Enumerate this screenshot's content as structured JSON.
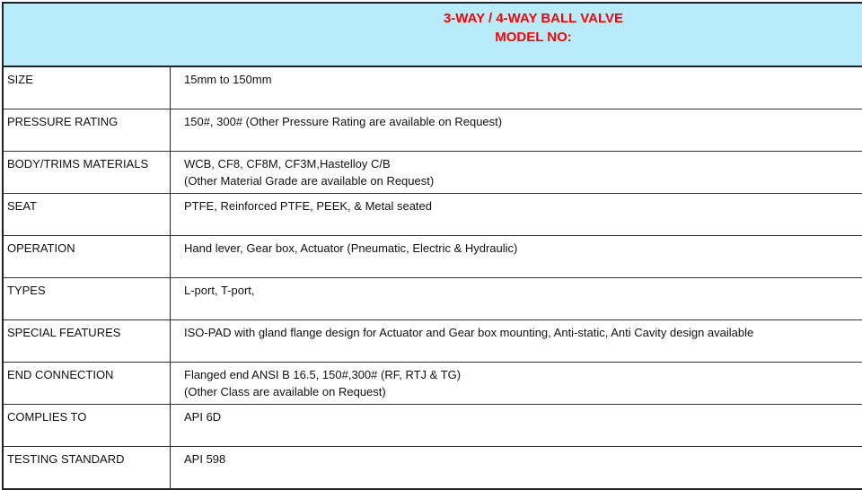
{
  "header": {
    "title": "3-WAY / 4-WAY BALL VALVE",
    "model_label": "MODEL NO:",
    "title_color": "#ff0000",
    "background": "#b8ecfb"
  },
  "rows": [
    {
      "label": "SIZE",
      "value": [
        "15mm to 150mm"
      ]
    },
    {
      "label": "PRESSURE RATING",
      "value": [
        "150#, 300# (Other Pressure Rating are available on Request)"
      ]
    },
    {
      "label": "BODY/TRIMS MATERIALS",
      "value": [
        "WCB, CF8, CF8M, CF3M,Hastelloy C/B",
        "(Other Material Grade are available on Request)"
      ]
    },
    {
      "label": "SEAT",
      "value": [
        "PTFE, Reinforced PTFE, PEEK, & Metal seated"
      ]
    },
    {
      "label": "OPERATION",
      "value": [
        "Hand lever, Gear box, Actuator (Pneumatic, Electric & Hydraulic)"
      ]
    },
    {
      "label": "TYPES",
      "value": [
        "L-port, T-port,"
      ]
    },
    {
      "label": "SPECIAL FEATURES",
      "value": [
        "ISO-PAD with gland flange design for Actuator and Gear box  mounting, Anti-static, Anti Cavity design available"
      ]
    },
    {
      "label": "END CONNECTION",
      "value": [
        "Flanged end ANSI B 16.5, 150#,300# (RF, RTJ & TG)",
        "(Other Class are available on Request)"
      ]
    },
    {
      "label": "COMPLIES TO",
      "value": [
        "API 6D"
      ]
    },
    {
      "label": "TESTING STANDARD",
      "value": [
        "API 598"
      ]
    }
  ]
}
